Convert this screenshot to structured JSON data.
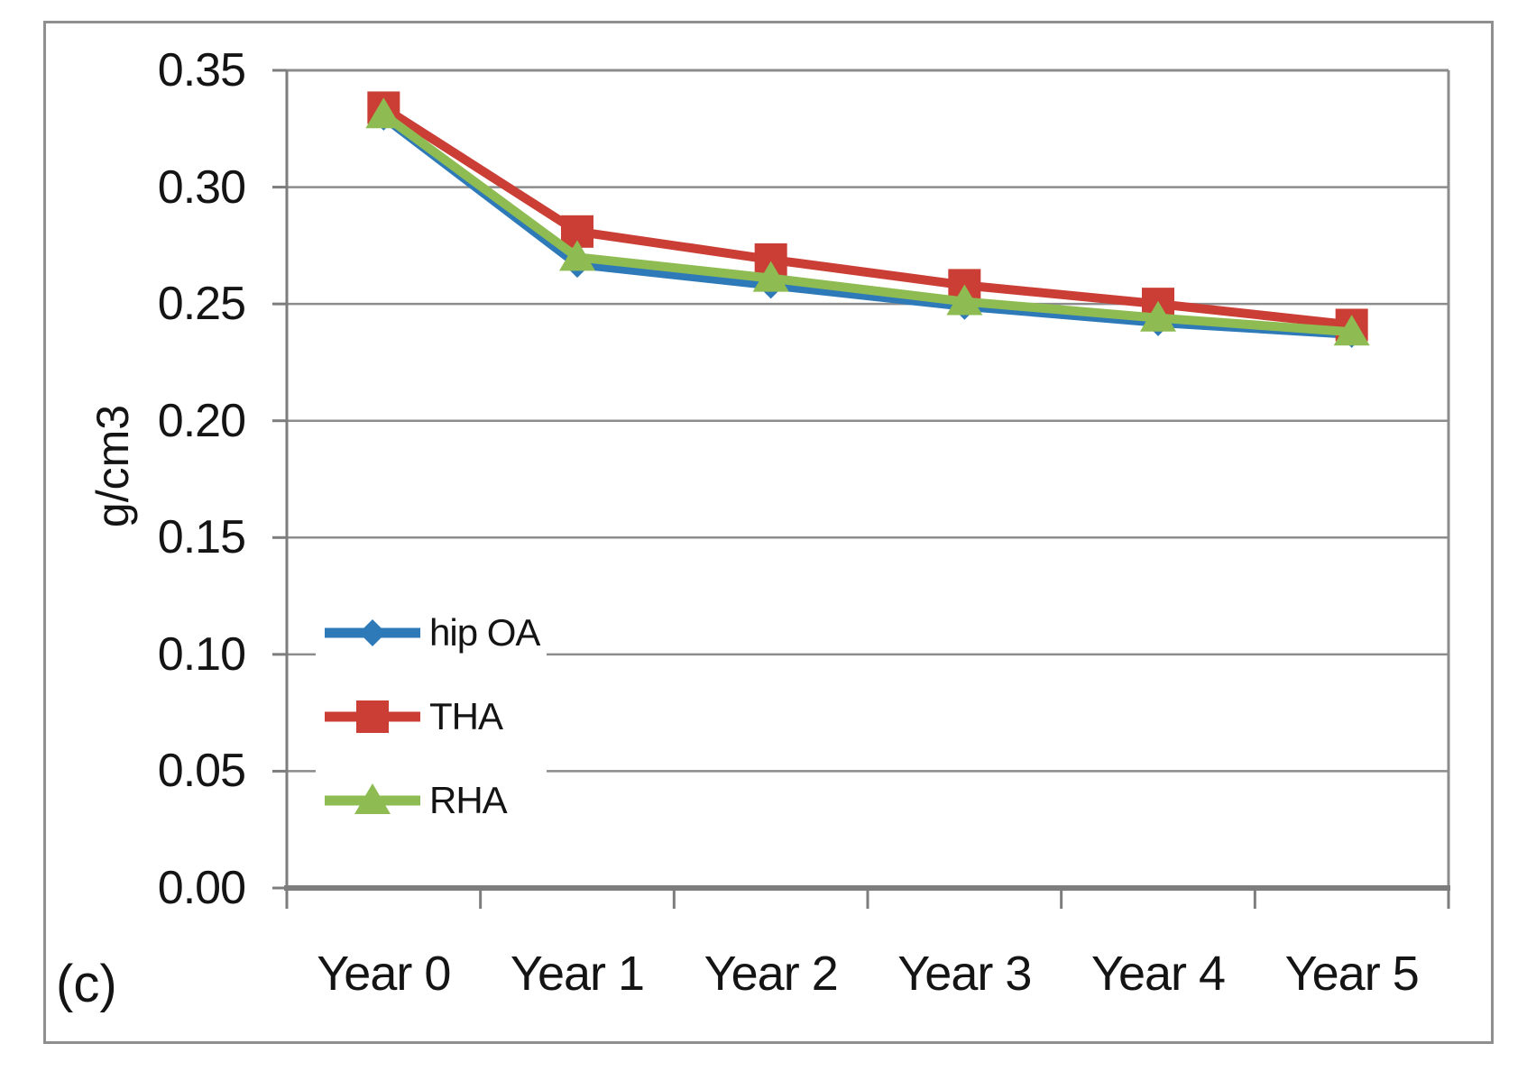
{
  "figure": {
    "panel_label": "(c)",
    "background_color": "#ffffff",
    "frame_color": "#8f8f8f"
  },
  "chart_data": {
    "type": "line",
    "title": "",
    "xlabel": "",
    "ylabel": "g/cm3",
    "categories": [
      "Year 0",
      "Year 1",
      "Year 2",
      "Year 3",
      "Year 4",
      "Year 5"
    ],
    "series": [
      {
        "name": "hip OA",
        "marker": "diamond",
        "color": "#2e79b8",
        "values": [
          0.33,
          0.267,
          0.258,
          0.249,
          0.242,
          0.237
        ]
      },
      {
        "name": "THA",
        "marker": "square",
        "color": "#cb3e36",
        "values": [
          0.334,
          0.281,
          0.269,
          0.258,
          0.25,
          0.241
        ]
      },
      {
        "name": "RHA",
        "marker": "triangle",
        "color": "#8ebc52",
        "values": [
          0.331,
          0.27,
          0.261,
          0.251,
          0.244,
          0.238
        ]
      }
    ],
    "ylim": [
      0,
      0.35
    ],
    "ytick_labels": [
      "0.00",
      "0.05",
      "0.10",
      "0.15",
      "0.20",
      "0.25",
      "0.30",
      "0.35"
    ],
    "grid": true,
    "legend_position": "inside-left",
    "axis_color": "#7d7d7d",
    "grid_color": "#8c8c8c"
  }
}
